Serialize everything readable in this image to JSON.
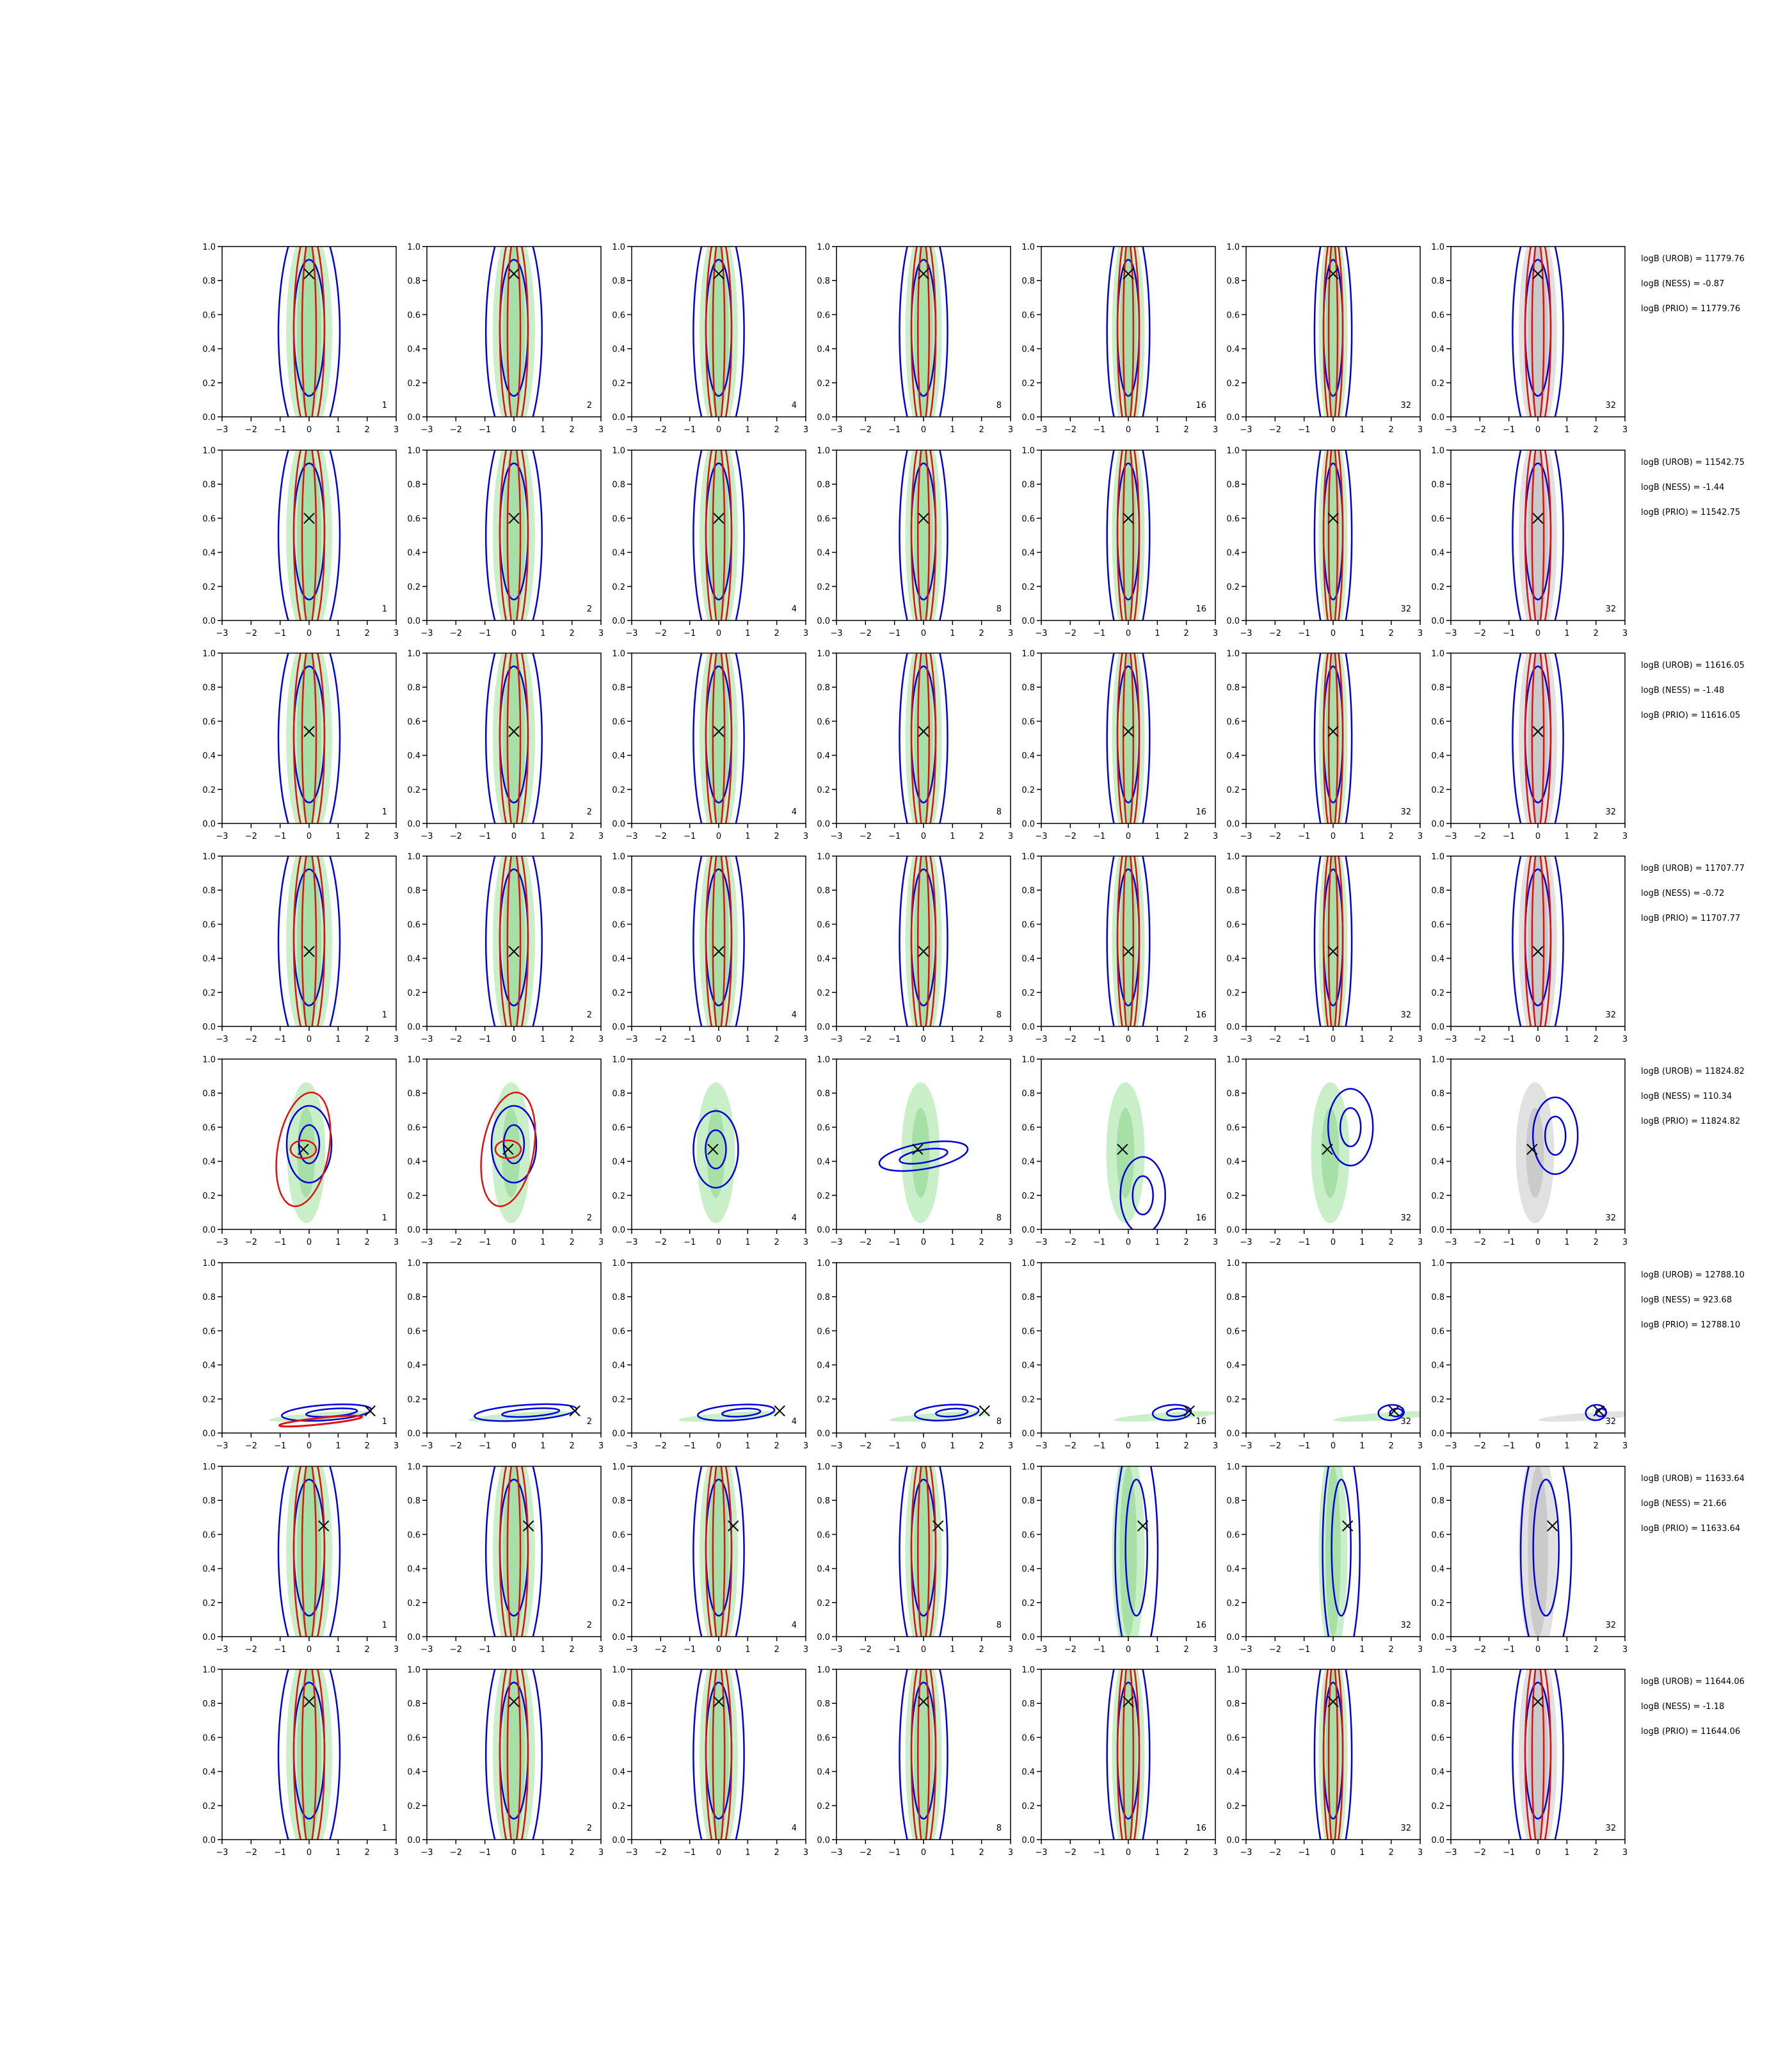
{
  "figure": {
    "columns": [
      "1",
      "2",
      "4",
      "8",
      "16",
      "32",
      "32"
    ],
    "row_labels": [
      [
        "logB (UROB) = 11779.76",
        "logB (NESS) = -0.87",
        "logB (PRIO) = 11779.76"
      ],
      [
        "logB (UROB) = 11542.75",
        "logB (NESS) = -1.44",
        "logB (PRIO) = 11542.75"
      ],
      [
        "logB (UROB) = 11616.05",
        "logB (NESS) = -1.48",
        "logB (PRIO) = 11616.05"
      ],
      [
        "logB (UROB) = 11707.77",
        "logB (NESS) = -0.72",
        "logB (PRIO) = 11707.77"
      ],
      [
        "logB (UROB) = 11824.82",
        "logB (NESS) = 110.34",
        "logB (PRIO) = 11824.82"
      ],
      [
        "logB (UROB) = 12788.10",
        "logB (NESS) = 923.68",
        "logB (PRIO) = 12788.10"
      ],
      [
        "logB (UROB) = 11633.64",
        "logB (NESS) = 21.66",
        "logB (PRIO) = 11633.64"
      ],
      [
        "logB (UROB) = 11644.06",
        "logB (NESS) = -1.18",
        "logB (PRIO) = 11644.06"
      ]
    ]
  },
  "chart_data": {
    "type": "contour",
    "xlim": [
      -3,
      3
    ],
    "ylim": [
      0,
      1
    ],
    "xticks": [
      "−3",
      "−2",
      "−1",
      "0",
      "1",
      "2",
      "3"
    ],
    "yticks": [
      "0.0",
      "0.2",
      "0.4",
      "0.6",
      "0.8",
      "1.0"
    ],
    "colors": {
      "fill_green": "#9be29b",
      "fill_gray": "#c8c8c8",
      "contour_red": "#e01010",
      "contour_blue": "#0000dd",
      "marker": "#000000"
    },
    "markers": [
      {
        "x": 0.0,
        "y": 0.84
      },
      {
        "x": 0.0,
        "y": 0.6
      },
      {
        "x": 0.0,
        "y": 0.54
      },
      {
        "x": 0.0,
        "y": 0.44
      },
      {
        "x": -0.2,
        "y": 0.47
      },
      {
        "x": 2.1,
        "y": 0.13
      },
      {
        "x": 0.5,
        "y": 0.65
      },
      {
        "x": 0.0,
        "y": 0.81
      }
    ],
    "row_styles": [
      "vertical",
      "vertical",
      "vertical",
      "vertical",
      "blob",
      "flat",
      "shifted",
      "vertical"
    ]
  }
}
